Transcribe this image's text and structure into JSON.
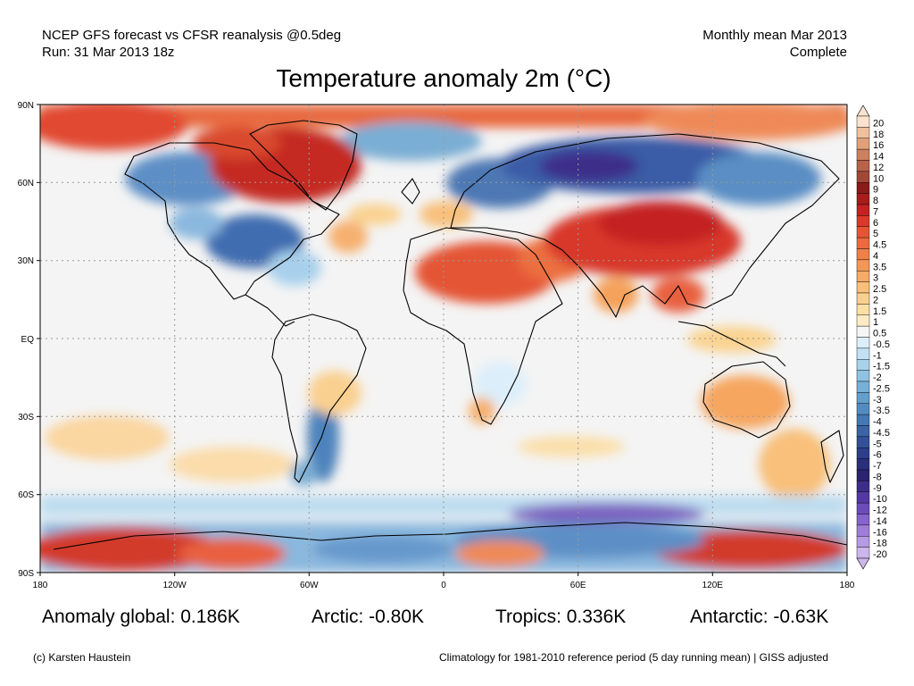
{
  "header": {
    "line1": "NCEP GFS forecast vs CFSR reanalysis @0.5deg",
    "line2": "Run: 31 Mar 2013 18z",
    "period": "Monthly mean Mar 2013",
    "status": "Complete"
  },
  "title": "Temperature anomaly 2m (°C)",
  "axes": {
    "lat_labels": [
      "90N",
      "60N",
      "30N",
      "EQ",
      "30S",
      "60S",
      "90S"
    ],
    "lon_labels": [
      "180",
      "120W",
      "60W",
      "0",
      "60E",
      "120E",
      "180"
    ]
  },
  "colorbar": {
    "labels": [
      "20",
      "18",
      "16",
      "14",
      "12",
      "10",
      "9",
      "8",
      "7",
      "6",
      "5",
      "4.5",
      "4",
      "3.5",
      "3",
      "2.5",
      "2",
      "1.5",
      "1",
      "0.5",
      "-0.5",
      "-1",
      "-1.5",
      "-2",
      "-2.5",
      "-3",
      "-3.5",
      "-4",
      "-4.5",
      "-5",
      "-6",
      "-7",
      "-8",
      "-9",
      "-10",
      "-12",
      "-14",
      "-16",
      "-18",
      "-20"
    ],
    "colors": [
      "#fbe3d0",
      "#efc09e",
      "#e0a07a",
      "#cc8060",
      "#b8624a",
      "#a34838",
      "#8c1a1a",
      "#a81c1c",
      "#c42222",
      "#d93a2c",
      "#e45536",
      "#ec6a3e",
      "#f07f48",
      "#f49656",
      "#f6ab66",
      "#f8c07a",
      "#fad08e",
      "#fbdfa6",
      "#fcebc4",
      "#f5f5f5",
      "#dceefa",
      "#c2e1f4",
      "#a8d2ec",
      "#90c2e2",
      "#78b0d6",
      "#649ecb",
      "#528bc0",
      "#4577b3",
      "#3a64a6",
      "#325198",
      "#2d3f8a",
      "#2a307c",
      "#2c2370",
      "#3e2e8a",
      "#5438a4",
      "#6c4cbc",
      "#8564cc",
      "#9e7ed8",
      "#b69ae2",
      "#ccb6ea"
    ]
  },
  "stats": {
    "global": "Anomaly global: 0.186K",
    "arctic": "Arctic: -0.80K",
    "tropics": "Tropics: 0.336K",
    "antarctic": "Antarctic: -0.63K"
  },
  "credit": {
    "author": "(c) Karsten Haustein",
    "climatology": "Climatology for 1981-2010 reference period (5 day running mean) | GISS adjusted"
  }
}
